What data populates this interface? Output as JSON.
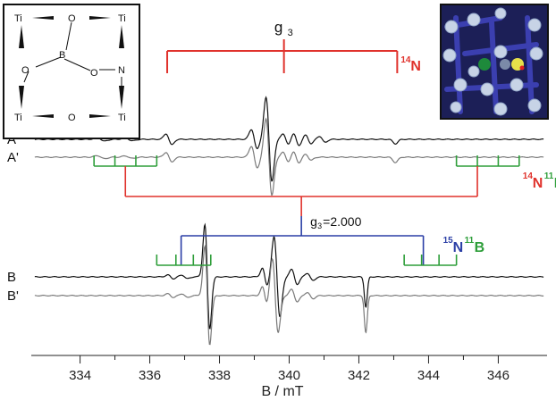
{
  "chart_data": {
    "type": "line",
    "title": "",
    "xlabel": "B / mT",
    "ylabel": "",
    "xlim": [
      332.6,
      347.4
    ],
    "x_ticks": [
      334,
      335,
      336,
      337,
      338,
      339,
      340,
      341,
      342,
      343,
      344,
      345,
      346
    ],
    "x_tick_labels": [
      "334",
      "336",
      "338",
      "340",
      "342",
      "344",
      "346"
    ],
    "grid": false,
    "legend": "none",
    "series": [
      {
        "name": "A",
        "color": "#111111",
        "baseline": 156,
        "features": [
          {
            "x": 334.6,
            "a": 3,
            "w": 0.15,
            "k": "d"
          },
          {
            "x": 335.4,
            "a": 2.5,
            "w": 0.15,
            "k": "d"
          },
          {
            "x": 336.55,
            "a": 9,
            "w": 0.12,
            "k": "d"
          },
          {
            "x": 339.0,
            "a": 16,
            "w": 0.12,
            "k": "d"
          },
          {
            "x": 339.42,
            "a": 68,
            "w": 0.12,
            "k": "d"
          },
          {
            "x": 339.9,
            "a": 9,
            "w": 0.12,
            "k": "d"
          },
          {
            "x": 340.2,
            "a": 10,
            "w": 0.12,
            "k": "d"
          },
          {
            "x": 340.55,
            "a": 7,
            "w": 0.12,
            "k": "d"
          },
          {
            "x": 340.95,
            "a": 5,
            "w": 0.12,
            "k": "d"
          },
          {
            "x": 343.05,
            "a": 5,
            "w": 0.1,
            "k": "g"
          }
        ]
      },
      {
        "name": "A'",
        "color": "#7a7a7a",
        "baseline": 176,
        "features": [
          {
            "x": 334.6,
            "a": 2.5,
            "w": 0.15,
            "k": "d"
          },
          {
            "x": 335.4,
            "a": 2,
            "w": 0.15,
            "k": "d"
          },
          {
            "x": 336.55,
            "a": 8,
            "w": 0.12,
            "k": "d"
          },
          {
            "x": 339.0,
            "a": 18,
            "w": 0.12,
            "k": "d"
          },
          {
            "x": 339.42,
            "a": 62,
            "w": 0.12,
            "k": "d"
          },
          {
            "x": 339.9,
            "a": 8,
            "w": 0.12,
            "k": "d"
          },
          {
            "x": 340.2,
            "a": 9,
            "w": 0.12,
            "k": "d"
          },
          {
            "x": 340.55,
            "a": 5,
            "w": 0.12,
            "k": "d"
          },
          {
            "x": 343.05,
            "a": 6,
            "w": 0.1,
            "k": "g"
          }
        ]
      },
      {
        "name": "B",
        "color": "#111111",
        "baseline": 310,
        "features": [
          {
            "x": 336.6,
            "a": 3,
            "w": 0.12,
            "k": "d"
          },
          {
            "x": 337.0,
            "a": 3,
            "w": 0.12,
            "k": "d"
          },
          {
            "x": 337.65,
            "a": 85,
            "w": 0.1,
            "k": "d"
          },
          {
            "x": 339.3,
            "a": 14,
            "w": 0.1,
            "k": "d"
          },
          {
            "x": 339.65,
            "a": 65,
            "w": 0.12,
            "k": "d"
          },
          {
            "x": 340.15,
            "a": 12,
            "w": 0.12,
            "k": "d"
          },
          {
            "x": 340.6,
            "a": 6,
            "w": 0.12,
            "k": "d"
          },
          {
            "x": 342.2,
            "a": 34,
            "w": 0.06,
            "k": "g"
          }
        ]
      },
      {
        "name": "B'",
        "color": "#7a7a7a",
        "baseline": 331,
        "features": [
          {
            "x": 336.6,
            "a": 3,
            "w": 0.12,
            "k": "d"
          },
          {
            "x": 337.0,
            "a": 3,
            "w": 0.12,
            "k": "d"
          },
          {
            "x": 337.65,
            "a": 80,
            "w": 0.1,
            "k": "d"
          },
          {
            "x": 339.3,
            "a": 14,
            "w": 0.1,
            "k": "d"
          },
          {
            "x": 339.6,
            "a": 60,
            "w": 0.12,
            "k": "d"
          },
          {
            "x": 340.15,
            "a": 10,
            "w": 0.12,
            "k": "d"
          },
          {
            "x": 340.6,
            "a": 5,
            "w": 0.12,
            "k": "d"
          },
          {
            "x": 342.2,
            "a": 42,
            "w": 0.06,
            "k": "g"
          }
        ]
      }
    ],
    "annotations": {
      "g3_top": {
        "label": "g",
        "sub": "3",
        "center": 339.85,
        "left": 336.5,
        "right": 343.1,
        "color": "#e0322c",
        "iso_label_sup": "14",
        "iso_label_el": "N"
      },
      "n14b11": {
        "centers": [
          335.3,
          345.4
        ],
        "ticks_left": [
          334.4,
          335.0,
          335.6,
          336.2
        ],
        "ticks_right": [
          344.8,
          345.4,
          346.0,
          346.6
        ],
        "red_center": 340.35,
        "color": "#2e9e3a",
        "red": "#e0322c",
        "label_sup1": "14",
        "label_el1": "N",
        "label_sup2": "11",
        "label_el2": "B"
      },
      "g3_mid": {
        "text": "g",
        "sub": "3",
        "value_text": "=2.000",
        "x": 340.35
      },
      "n15b11": {
        "center": 340.35,
        "left": 336.9,
        "right": 343.85,
        "ticks_left": [
          336.2,
          336.75,
          337.25,
          337.75
        ],
        "ticks_right": [
          343.3,
          343.8,
          344.3,
          344.8
        ],
        "blue": "#2b3fa6",
        "green": "#2e9e3a",
        "label_sup1": "15",
        "label_el1": "N",
        "label_sup2": "11",
        "label_el2": "B"
      }
    },
    "structure": {
      "atoms": [
        "Ti",
        "O",
        "Ti",
        "B",
        "O",
        "O",
        "N",
        "Ti",
        "O",
        "Ti"
      ]
    }
  }
}
